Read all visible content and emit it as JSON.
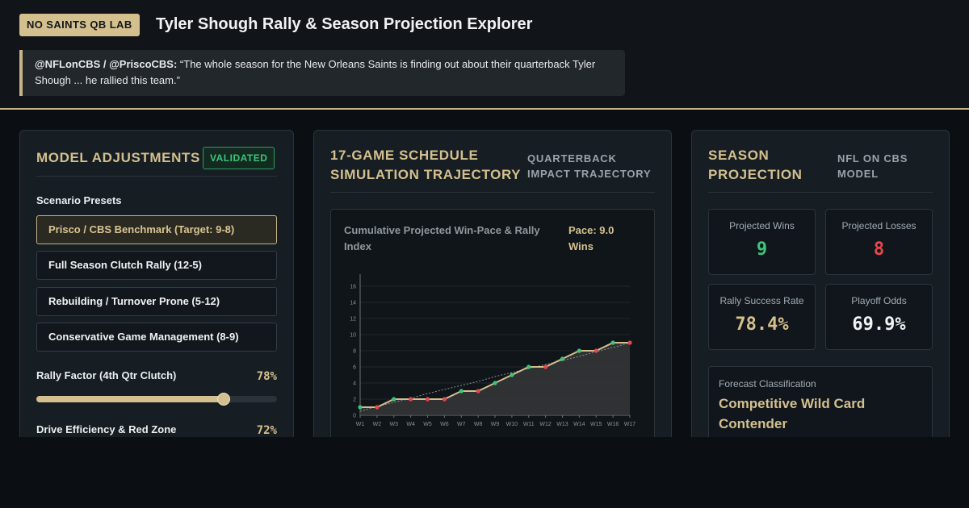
{
  "header": {
    "badge": "NO SAINTS QB LAB",
    "title": "Tyler Shough Rally & Season Projection Explorer",
    "quote_source": "@NFLonCBS / @PriscoCBS:",
    "quote_text": " “The whole season for the New Orleans Saints is finding out about their quarterback Tyler Shough ... he rallied this team.”"
  },
  "adjustments": {
    "title": "MODEL ADJUSTMENTS",
    "status_badge": "VALIDATED",
    "presets_label": "Scenario Presets",
    "presets": [
      {
        "label": "Prisco / CBS Benchmark (Target: 9-8)",
        "active": true
      },
      {
        "label": "Full Season Clutch Rally (12-5)",
        "active": false
      },
      {
        "label": "Rebuilding / Turnover Prone (5-12)",
        "active": false
      },
      {
        "label": "Conservative Game Management (8-9)",
        "active": false
      }
    ],
    "sliders": [
      {
        "label": "Rally Factor (4th Qtr Clutch)",
        "value_text": "78%",
        "value": 78
      },
      {
        "label": "Drive Efficiency & Red Zone",
        "value_text": "72%",
        "value": 72
      }
    ]
  },
  "schedule": {
    "title_line1": "17-GAME SCHEDULE",
    "title_line2": "SIMULATION TRAJECTORY",
    "subtitle_line1": "QUARTERBACK",
    "subtitle_line2": "IMPACT TRAJECTORY",
    "chart_title": "Cumulative Projected Win-Pace & Rally Index",
    "pace_line1": "Pace: 9.0",
    "pace_line2": "Wins"
  },
  "projection": {
    "title_line1": "SEASON",
    "title_line2": "PROJECTION",
    "subtitle_line1": "NFL ON CBS",
    "subtitle_line2": "MODEL",
    "stats": [
      {
        "label": "Projected Wins",
        "value": "9",
        "color": "#3ec47a"
      },
      {
        "label": "Projected Losses",
        "value": "8",
        "color": "#e5484d"
      },
      {
        "label": "Rally Success Rate",
        "value": "78.4%",
        "color": "#d4c08f"
      },
      {
        "label": "Playoff Odds",
        "value": "69.9%",
        "color": "#f1f2f3"
      }
    ],
    "forecast_label": "Forecast Classification",
    "forecast_value": "Competitive Wild Card Contender"
  },
  "chart_data": {
    "type": "line",
    "title": "Cumulative Projected Win-Pace & Rally Index",
    "x": [
      "W1",
      "W2",
      "W3",
      "W4",
      "W5",
      "W6",
      "W7",
      "W8",
      "W9",
      "W10",
      "W11",
      "W12",
      "W13",
      "W14",
      "W15",
      "W16",
      "W17"
    ],
    "series": [
      {
        "values": [
          1,
          1,
          2,
          2,
          2,
          2,
          3,
          3,
          4,
          5,
          6,
          6,
          7,
          8,
          8,
          9,
          9
        ],
        "results": [
          "W",
          "L",
          "W",
          "L",
          "L",
          "L",
          "W",
          "L",
          "W",
          "W",
          "W",
          "L",
          "W",
          "W",
          "L",
          "W",
          "L"
        ]
      },
      {
        "values": [
          0.5,
          1.1,
          1.6,
          2.1,
          2.7,
          3.2,
          3.7,
          4.2,
          4.8,
          5.3,
          5.8,
          6.3,
          6.8,
          7.3,
          7.9,
          8.4,
          9.0
        ]
      }
    ],
    "yticks": [
      0,
      2,
      4,
      6,
      8,
      10,
      12,
      14,
      16
    ],
    "ylim": [
      0,
      17
    ],
    "grid": true,
    "colors": {
      "line": "#d4c08f",
      "win": "#3ec47a",
      "loss": "#e5484d",
      "pace": "#8a8f94"
    }
  }
}
